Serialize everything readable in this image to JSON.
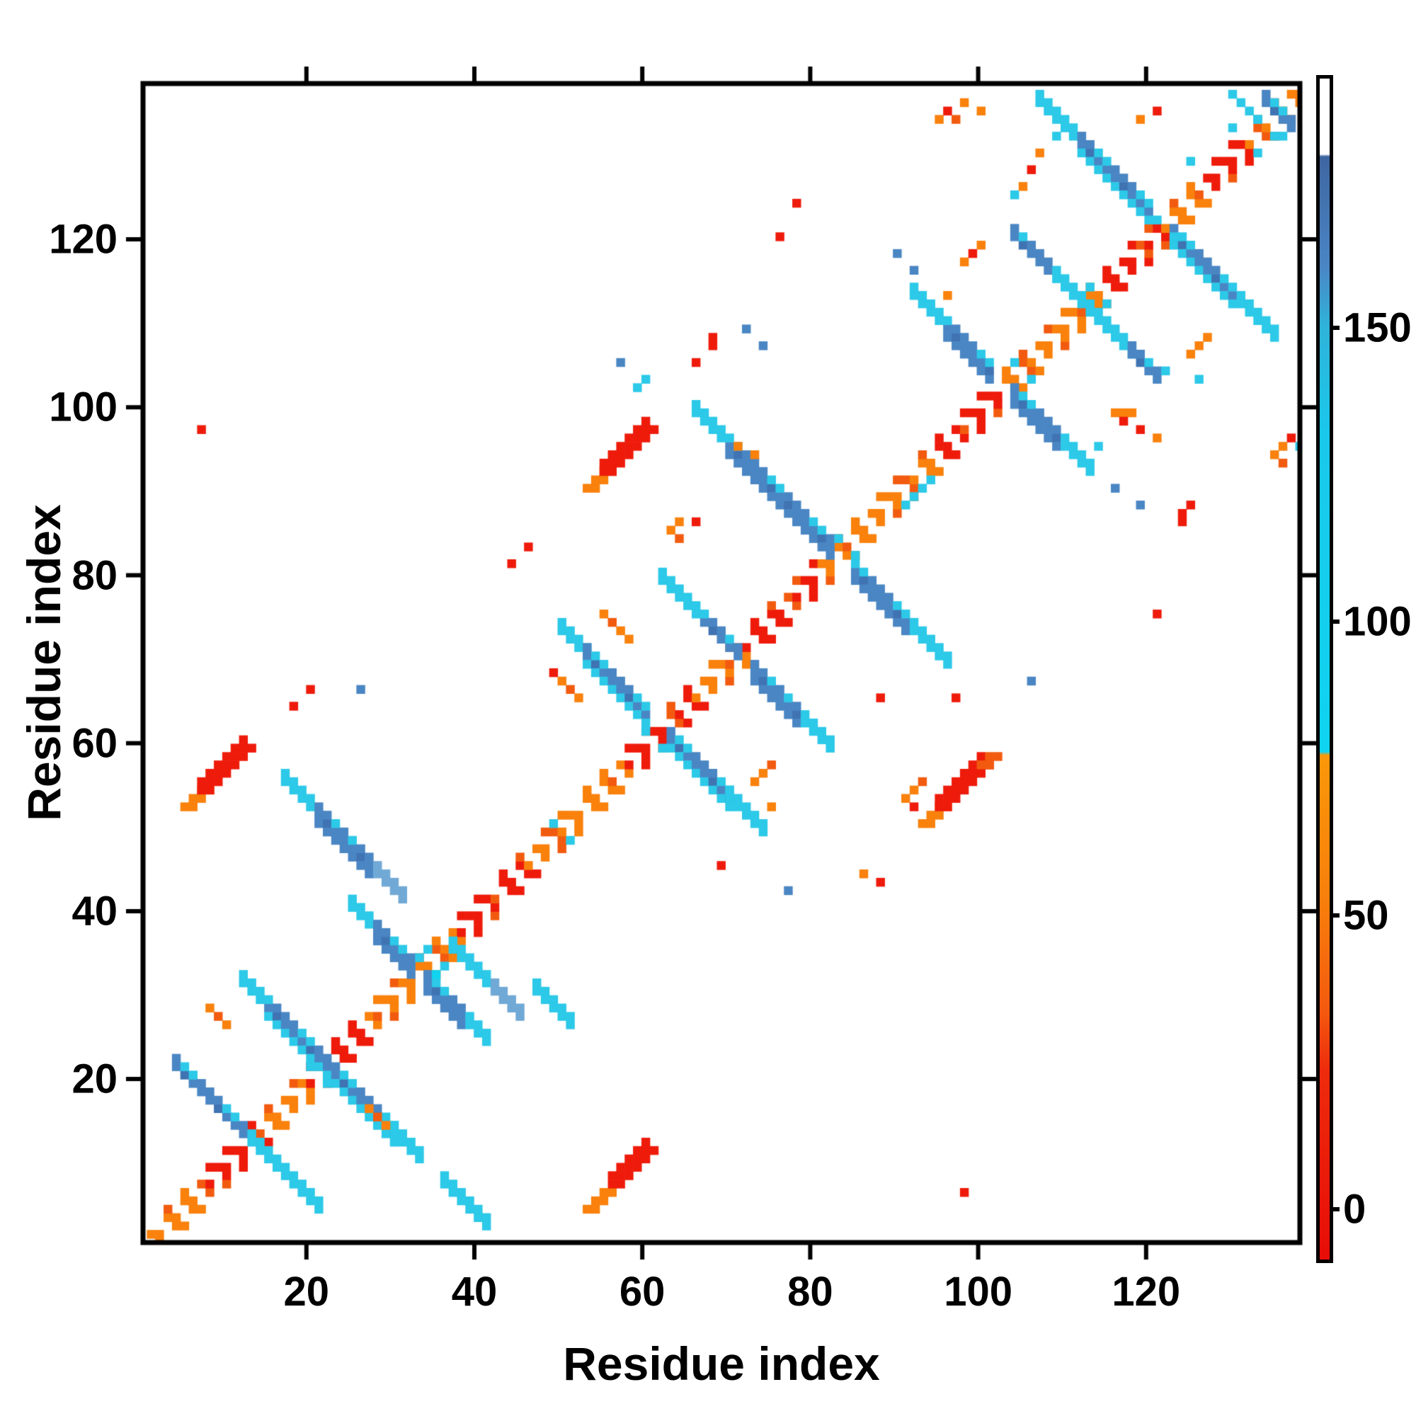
{
  "figure": {
    "background": "#ffffff",
    "frame_color": "#000000"
  },
  "chart_data": {
    "type": "heatmap",
    "title": "",
    "xlabel": "Residue index",
    "ylabel": "Residue index",
    "x_range": [
      1,
      138
    ],
    "y_range": [
      1,
      138
    ],
    "x_ticks": [
      20,
      40,
      60,
      80,
      100,
      120
    ],
    "y_ticks": [
      20,
      40,
      60,
      80,
      100,
      120
    ],
    "grid": false,
    "legend": "colorbar-right",
    "colorbar": {
      "ticks": [
        0,
        50,
        100,
        150
      ],
      "value_top": 193,
      "value_bottom": -8,
      "stops": [
        [
          0,
          "#ffffff"
        ],
        [
          0.064,
          "#ffffff"
        ],
        [
          0.066,
          "#3e66a0"
        ],
        [
          0.16,
          "#4a86c5"
        ],
        [
          0.21,
          "#2fb3da"
        ],
        [
          0.3,
          "#1ac8ea"
        ],
        [
          0.57,
          "#0fd4f1"
        ],
        [
          0.573,
          "#fa980a"
        ],
        [
          0.7,
          "#f87e0c"
        ],
        [
          0.79,
          "#f4590f"
        ],
        [
          0.84,
          "#ee2b0d"
        ],
        [
          1.0,
          "#e80d07"
        ]
      ]
    },
    "palette": {
      "R": "#ee1b0b",
      "r": "#f43b10",
      "O": "#f9810c",
      "D": "#f25b0f",
      "C": "#2cc9e8",
      "B": "#10d4f0",
      "L": "#8fdfed",
      "S": "#4a86c3",
      "T": "#3f73b1",
      "U": "#71a9d6",
      "W": "#ffffff"
    },
    "diagonal_segments": [
      [
        1,
        7,
        "O"
      ],
      [
        8,
        13,
        "R"
      ],
      [
        14,
        19,
        "O"
      ],
      [
        20,
        26,
        "R"
      ],
      [
        27,
        37,
        "O"
      ],
      [
        38,
        45,
        "R"
      ],
      [
        46,
        57,
        "O"
      ],
      [
        58,
        65,
        "R"
      ],
      [
        66,
        71,
        "O"
      ],
      [
        72,
        80,
        "R"
      ],
      [
        81,
        94,
        "O"
      ],
      [
        95,
        102,
        "R"
      ],
      [
        103,
        114,
        "O"
      ],
      [
        115,
        121,
        "R"
      ],
      [
        122,
        126,
        "O"
      ],
      [
        127,
        131,
        "R"
      ],
      [
        132,
        138,
        "O"
      ]
    ],
    "strokes": [
      {
        "t": "a",
        "i": 4,
        "j": 22,
        "n": 9,
        "w": 2,
        "c": "S"
      },
      {
        "t": "a",
        "i": 13,
        "j": 13,
        "n": 9,
        "w": 2,
        "c": "C"
      },
      {
        "t": "a",
        "i": 12,
        "j": 32,
        "n": 3,
        "w": 2,
        "c": "C"
      },
      {
        "t": "a",
        "i": 15,
        "j": 29,
        "n": 8,
        "w": 3,
        "c": "S"
      },
      {
        "t": "a",
        "i": 23,
        "j": 21,
        "n": 8,
        "w": 3,
        "c": "S"
      },
      {
        "t": "a",
        "i": 30,
        "j": 14,
        "n": 4,
        "w": 2,
        "c": "C"
      },
      {
        "t": "a",
        "i": 36,
        "j": 8,
        "n": 6,
        "w": 2,
        "c": "C"
      },
      {
        "t": "a",
        "i": 25,
        "j": 41,
        "n": 3,
        "w": 2,
        "c": "C"
      },
      {
        "t": "a",
        "i": 28,
        "j": 38,
        "n": 5,
        "w": 3,
        "c": "S"
      },
      {
        "t": "a",
        "i": 34,
        "j": 32,
        "n": 5,
        "w": 3,
        "c": "S"
      },
      {
        "t": "a",
        "i": 39,
        "j": 27,
        "n": 3,
        "w": 2,
        "c": "C"
      },
      {
        "t": "a",
        "i": 17,
        "j": 56,
        "n": 4,
        "w": 2,
        "c": "C"
      },
      {
        "t": "a",
        "i": 21,
        "j": 52,
        "n": 7,
        "w": 3,
        "c": "S"
      },
      {
        "t": "a",
        "i": 28,
        "j": 45,
        "n": 4,
        "w": 2,
        "c": "U"
      },
      {
        "t": "a",
        "i": 37,
        "j": 36,
        "n": 5,
        "w": 2,
        "c": "C"
      },
      {
        "t": "a",
        "i": 42,
        "j": 31,
        "n": 4,
        "w": 2,
        "c": "U"
      },
      {
        "t": "a",
        "i": 47,
        "j": 31,
        "n": 5,
        "w": 2,
        "c": "C"
      },
      {
        "t": "a",
        "i": 50,
        "j": 74,
        "n": 4,
        "w": 2,
        "c": "C"
      },
      {
        "t": "a",
        "i": 53,
        "j": 71,
        "n": 8,
        "w": 3,
        "c": "S"
      },
      {
        "t": "a",
        "i": 63,
        "j": 61,
        "n": 8,
        "w": 3,
        "c": "S"
      },
      {
        "t": "a",
        "i": 70,
        "j": 54,
        "n": 5,
        "w": 2,
        "c": "C"
      },
      {
        "t": "a",
        "i": 62,
        "j": 80,
        "n": 5,
        "w": 2,
        "c": "C"
      },
      {
        "t": "a",
        "i": 67,
        "j": 75,
        "n": 5,
        "w": 2,
        "c": "S"
      },
      {
        "t": "a",
        "i": 73,
        "j": 69,
        "n": 6,
        "w": 3,
        "c": "S"
      },
      {
        "t": "a",
        "i": 79,
        "j": 63,
        "n": 4,
        "w": 2,
        "c": "C"
      },
      {
        "t": "a",
        "i": 66,
        "j": 100,
        "n": 4,
        "w": 2,
        "c": "C"
      },
      {
        "t": "a",
        "i": 70,
        "j": 96,
        "n": 6,
        "w": 3,
        "c": "S"
      },
      {
        "t": "a",
        "i": 76,
        "j": 90,
        "n": 7,
        "w": 3,
        "c": "S"
      },
      {
        "t": "a",
        "i": 85,
        "j": 81,
        "n": 7,
        "w": 3,
        "c": "S"
      },
      {
        "t": "a",
        "i": 92,
        "j": 74,
        "n": 5,
        "w": 2,
        "c": "C"
      },
      {
        "t": "a",
        "i": 92,
        "j": 114,
        "n": 4,
        "w": 2,
        "c": "C"
      },
      {
        "t": "a",
        "i": 96,
        "j": 110,
        "n": 6,
        "w": 3,
        "c": "S"
      },
      {
        "t": "a",
        "i": 104,
        "j": 102,
        "n": 6,
        "w": 3,
        "c": "S"
      },
      {
        "t": "a",
        "i": 110,
        "j": 96,
        "n": 4,
        "w": 2,
        "c": "C"
      },
      {
        "t": "a",
        "i": 104,
        "j": 121,
        "n": 5,
        "w": 2,
        "c": "S"
      },
      {
        "t": "a",
        "i": 109,
        "j": 116,
        "n": 5,
        "w": 2,
        "c": "C"
      },
      {
        "t": "a",
        "i": 114,
        "j": 111,
        "n": 5,
        "w": 2,
        "c": "C"
      },
      {
        "t": "a",
        "i": 118,
        "j": 107,
        "n": 4,
        "w": 2,
        "c": "S"
      },
      {
        "t": "a",
        "i": 107,
        "j": 137,
        "n": 5,
        "w": 2,
        "c": "C"
      },
      {
        "t": "a",
        "i": 112,
        "j": 132,
        "n": 9,
        "w": 3,
        "c": "S"
      },
      {
        "t": "a",
        "i": 123,
        "j": 121,
        "n": 8,
        "w": 3,
        "c": "S"
      },
      {
        "t": "a",
        "i": 131,
        "j": 113,
        "n": 5,
        "w": 2,
        "c": "C"
      },
      {
        "t": "a",
        "i": 130,
        "j": 138,
        "n": 4,
        "w": 1,
        "c": "C"
      },
      {
        "t": "a",
        "i": 134,
        "j": 137,
        "n": 4,
        "w": 2,
        "c": "S"
      },
      {
        "t": "d",
        "i": 5,
        "j": 53,
        "n": 3,
        "w": 2,
        "c": "O"
      },
      {
        "t": "d",
        "i": 7,
        "j": 55,
        "n": 6,
        "w": 3,
        "c": "R"
      },
      {
        "t": "d",
        "i": 53,
        "j": 5,
        "n": 3,
        "w": 2,
        "c": "O"
      },
      {
        "t": "d",
        "i": 56,
        "j": 8,
        "n": 5,
        "w": 3,
        "c": "R"
      },
      {
        "t": "d",
        "i": 53,
        "j": 91,
        "n": 3,
        "w": 2,
        "c": "O"
      },
      {
        "t": "d",
        "i": 55,
        "j": 93,
        "n": 6,
        "w": 3,
        "c": "R"
      },
      {
        "t": "d",
        "i": 93,
        "j": 51,
        "n": 3,
        "w": 2,
        "c": "O"
      },
      {
        "t": "d",
        "i": 95,
        "j": 53,
        "n": 6,
        "w": 3,
        "c": "R"
      },
      {
        "t": "d",
        "i": 100,
        "j": 58,
        "n": 2,
        "w": 2,
        "c": "D"
      }
    ],
    "dots": [
      [
        7,
        98,
        "R"
      ],
      [
        18,
        65,
        "R"
      ],
      [
        20,
        67,
        "R"
      ],
      [
        26,
        67,
        "S"
      ],
      [
        8,
        29,
        "O"
      ],
      [
        9,
        28,
        "D"
      ],
      [
        10,
        27,
        "O"
      ],
      [
        27,
        17,
        "O"
      ],
      [
        28,
        16,
        "D"
      ],
      [
        29,
        15,
        "O"
      ],
      [
        44,
        82,
        "R"
      ],
      [
        46,
        84,
        "R"
      ],
      [
        49,
        69,
        "R"
      ],
      [
        50,
        68,
        "O"
      ],
      [
        51,
        67,
        "D"
      ],
      [
        52,
        66,
        "O"
      ],
      [
        55,
        76,
        "O"
      ],
      [
        56,
        75,
        "D"
      ],
      [
        57,
        74,
        "O"
      ],
      [
        58,
        73,
        "O"
      ],
      [
        63,
        86,
        "O"
      ],
      [
        64,
        87,
        "O"
      ],
      [
        64,
        85,
        "D"
      ],
      [
        66,
        87,
        "R"
      ],
      [
        66,
        106,
        "R"
      ],
      [
        68,
        108,
        "R"
      ],
      [
        68,
        109,
        "R"
      ],
      [
        72,
        110,
        "S"
      ],
      [
        74,
        108,
        "S"
      ],
      [
        76,
        121,
        "R"
      ],
      [
        78,
        125,
        "R"
      ],
      [
        90,
        119,
        "S"
      ],
      [
        92,
        117,
        "S"
      ],
      [
        96,
        114,
        "O"
      ],
      [
        71,
        96,
        "O"
      ],
      [
        73,
        95,
        "O"
      ],
      [
        59,
        103,
        "C"
      ],
      [
        60,
        104,
        "C"
      ],
      [
        57,
        106,
        "S"
      ],
      [
        98,
        118,
        "O"
      ],
      [
        99,
        119,
        "R"
      ],
      [
        100,
        120,
        "O"
      ],
      [
        104,
        126,
        "C"
      ],
      [
        105,
        127,
        "O"
      ],
      [
        106,
        129,
        "R"
      ],
      [
        107,
        131,
        "O"
      ],
      [
        109,
        133,
        "C"
      ],
      [
        121,
        136,
        "R"
      ],
      [
        119,
        135,
        "O"
      ],
      [
        125,
        130,
        "C"
      ],
      [
        130,
        134,
        "C"
      ],
      [
        95,
        135,
        "O"
      ],
      [
        96,
        136,
        "R"
      ],
      [
        97,
        135,
        "D"
      ],
      [
        98,
        137,
        "O"
      ],
      [
        100,
        136,
        "O"
      ],
      [
        98,
        7,
        "R"
      ],
      [
        121,
        76,
        "R"
      ],
      [
        124,
        87,
        "R"
      ],
      [
        124,
        88,
        "R"
      ],
      [
        125,
        89,
        "R"
      ],
      [
        116,
        91,
        "S"
      ],
      [
        119,
        89,
        "S"
      ],
      [
        69,
        46,
        "R"
      ],
      [
        77,
        43,
        "S"
      ],
      [
        75,
        53,
        "O"
      ],
      [
        88,
        66,
        "R"
      ],
      [
        97,
        66,
        "R"
      ],
      [
        91,
        54,
        "O"
      ],
      [
        92,
        55,
        "O"
      ],
      [
        92,
        53,
        "R"
      ],
      [
        93,
        56,
        "D"
      ],
      [
        86,
        45,
        "O"
      ],
      [
        88,
        44,
        "R"
      ],
      [
        106,
        68,
        "S"
      ],
      [
        135,
        95,
        "O"
      ],
      [
        136,
        96,
        "O"
      ],
      [
        137,
        97,
        "R"
      ],
      [
        136,
        94,
        "D"
      ],
      [
        138,
        96,
        "C"
      ],
      [
        133,
        131,
        "C"
      ],
      [
        136,
        133,
        "C"
      ],
      [
        116,
        100,
        "O"
      ],
      [
        117,
        100,
        "O"
      ],
      [
        118,
        100,
        "O"
      ],
      [
        117,
        99,
        "R"
      ],
      [
        119,
        98,
        "R"
      ],
      [
        121,
        97,
        "O"
      ],
      [
        114,
        96,
        "C"
      ],
      [
        125,
        107,
        "O"
      ],
      [
        126,
        108,
        "O"
      ],
      [
        127,
        109,
        "O"
      ],
      [
        122,
        105,
        "C"
      ],
      [
        126,
        104,
        "C"
      ],
      [
        73,
        56,
        "O"
      ],
      [
        74,
        57,
        "O"
      ],
      [
        75,
        58,
        "D"
      ],
      [
        20,
        22,
        "C"
      ],
      [
        22,
        20,
        "C"
      ],
      [
        34,
        36,
        "C"
      ],
      [
        36,
        34,
        "C"
      ],
      [
        35,
        33,
        "B"
      ],
      [
        33,
        35,
        "C"
      ],
      [
        49,
        51,
        "C"
      ],
      [
        51,
        49,
        "C"
      ],
      [
        60,
        62,
        "C"
      ],
      [
        62,
        60,
        "C"
      ],
      [
        83,
        85,
        "C"
      ],
      [
        85,
        83,
        "C"
      ],
      [
        92,
        90,
        "C"
      ],
      [
        93,
        91,
        "C"
      ],
      [
        94,
        92,
        "C"
      ],
      [
        91,
        89,
        "C"
      ],
      [
        104,
        106,
        "C"
      ],
      [
        106,
        104,
        "C"
      ],
      [
        113,
        115,
        "C"
      ],
      [
        115,
        113,
        "C"
      ],
      [
        121,
        123,
        "C"
      ],
      [
        123,
        121,
        "C"
      ],
      [
        133,
        135,
        "C"
      ],
      [
        135,
        133,
        "C"
      ]
    ],
    "layout_note": "square contact map, black frame, outward ticks on all four sides, colorbar at right"
  }
}
